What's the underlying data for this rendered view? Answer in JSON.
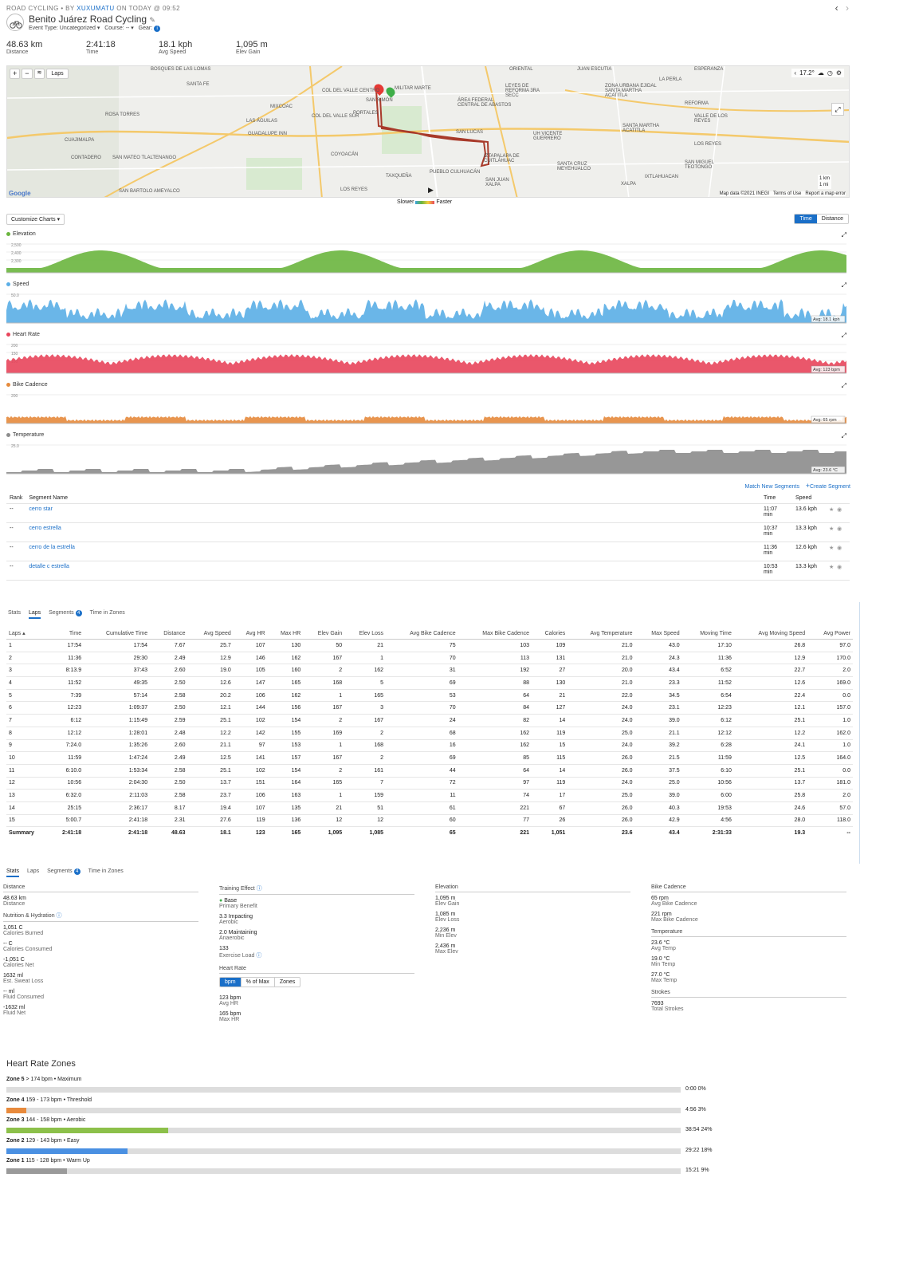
{
  "header": {
    "kicker": "ROAD CYCLING • BY",
    "author": "XUXUMATU",
    "when": "ON TODAY @ 09:52",
    "title": "Benito Juárez Road Cycling",
    "event_type": "Event Type: Uncategorized",
    "course": "Course: --",
    "gear": "Gear:",
    "nav_prev": "‹",
    "nav_next": "›"
  },
  "summary_stats": [
    {
      "value": "48.63 km",
      "label": "Distance"
    },
    {
      "value": "2:41:18",
      "label": "Time"
    },
    {
      "value": "18.1 kph",
      "label": "Avg Speed"
    },
    {
      "value": "1,095 m",
      "label": "Elev Gain"
    }
  ],
  "map": {
    "laps_label": "Laps",
    "temp": "17.2°",
    "attribution": "Map data ©2021 INEGI",
    "terms": "Terms of Use",
    "report": "Report a map error",
    "scale_km": "1 km",
    "scale_mi": "1 mi",
    "google": "Google",
    "places": [
      "BOSQUES DE LAS LOMAS",
      "SANTA FE",
      "ROSA TORRES",
      "CUAJIMALPA",
      "CONTADERO",
      "SAN MATEO TLALTENANGO",
      "SAN BARTOLO AMEYALCO",
      "MIXCOAC",
      "COL DEL VALLE CENTRO",
      "COL DEL VALLE SUR",
      "GUADALUPE INN",
      "LAS ÁGUILAS",
      "COYOACÁN",
      "LOS REYES",
      "SAN SIMÓN",
      "PORTALES",
      "MILITAR MARTE",
      "SAN LUCAS",
      "PUEBLO CULHUACÁN",
      "ÁREA FEDERAL CENTRAL DE ABASTOS",
      "LEYES DE REFORMA 3RA SECC",
      "UH VICENTE GUERRERO",
      "SANTA CRUZ MEYEHUALCO",
      "IZTAPALAPA DE CUITLÁHUAC",
      "SAN JUAN XALPA",
      "JUAN ESCUTIA",
      "ZONA URBANA EJIDAL SANTA MARTHA ACATITLA",
      "SANTA MARTHA ACATITLA",
      "REFORMA",
      "VALLE DE LOS REYES",
      "LOS REYES",
      "SAN MIGUEL TEOTONGO",
      "IXTLAHUACAN",
      "XALPA",
      "ESPERANZA",
      "LA PERLA",
      "ORIENTAL",
      "TAXQUEÑA"
    ],
    "legend_slower": "Slower",
    "legend_faster": "Faster"
  },
  "controls": {
    "customize": "Customize Charts ▾",
    "time": "Time",
    "distance": "Distance"
  },
  "charts": [
    {
      "key": "elev",
      "label": "Elevation",
      "color": "#6ab53e",
      "ticks": [
        "2,500",
        "2,400",
        "2,300"
      ],
      "avg": ""
    },
    {
      "key": "speed",
      "label": "Speed",
      "color": "#5aaee6",
      "ticks": [
        "50.0"
      ],
      "avg": "Avg: 18.1 kph"
    },
    {
      "key": "hr",
      "label": "Heart Rate",
      "color": "#e8455b",
      "ticks": [
        "200",
        "150",
        "100"
      ],
      "avg": "Avg: 123 bpm"
    },
    {
      "key": "cad",
      "label": "Bike Cadence",
      "color": "#e58a3c",
      "ticks": [
        "200"
      ],
      "avg": "Avg: 65 rpm"
    },
    {
      "key": "temp",
      "label": "Temperature",
      "color": "#8c8c8c",
      "ticks": [
        "25.0"
      ],
      "avg": "Avg: 23.6 °C"
    }
  ],
  "segments": {
    "match_new": "Match New Segments",
    "create": "Create Segment",
    "headers": {
      "rank": "Rank",
      "name": "Segment Name",
      "time": "Time",
      "speed": "Speed"
    },
    "rows": [
      {
        "rank": "--",
        "name": "cerro star",
        "time": "11:07",
        "unit": "min",
        "speed": "13.6 kph"
      },
      {
        "rank": "--",
        "name": "cerro estrella",
        "time": "10:37",
        "unit": "min",
        "speed": "13.3 kph"
      },
      {
        "rank": "--",
        "name": "cerro de la estrella",
        "time": "11:36",
        "unit": "min",
        "speed": "12.6 kph"
      },
      {
        "rank": "--",
        "name": "detalle c estrella",
        "time": "10:53",
        "unit": "min",
        "speed": "13.3 kph"
      }
    ]
  },
  "tabs": [
    "Stats",
    "Laps",
    "Segments",
    "Time in Zones"
  ],
  "tab_badge": "4",
  "laps": {
    "headers": [
      "Laps ▴",
      "Time",
      "Cumulative Time",
      "Distance",
      "Avg Speed",
      "Avg HR",
      "Max HR",
      "Elev Gain",
      "Elev Loss",
      "Avg Bike Cadence",
      "Max Bike Cadence",
      "Calories",
      "Avg Temperature",
      "Max Speed",
      "Moving Time",
      "Avg Moving Speed",
      "Avg Power"
    ],
    "rows": [
      [
        "1",
        "17:54",
        "17:54",
        "7.67",
        "25.7",
        "107",
        "130",
        "50",
        "21",
        "75",
        "103",
        "109",
        "21.0",
        "43.0",
        "17:10",
        "26.8",
        "97.0"
      ],
      [
        "2",
        "11:36",
        "29:30",
        "2.49",
        "12.9",
        "146",
        "162",
        "167",
        "1",
        "70",
        "113",
        "131",
        "21.0",
        "24.3",
        "11:36",
        "12.9",
        "170.0"
      ],
      [
        "3",
        "8:13.9",
        "37:43",
        "2.60",
        "19.0",
        "105",
        "160",
        "2",
        "162",
        "31",
        "192",
        "27",
        "20.0",
        "43.4",
        "6:52",
        "22.7",
        "2.0"
      ],
      [
        "4",
        "11:52",
        "49:35",
        "2.50",
        "12.6",
        "147",
        "165",
        "168",
        "5",
        "69",
        "88",
        "130",
        "21.0",
        "23.3",
        "11:52",
        "12.6",
        "169.0"
      ],
      [
        "5",
        "7:39",
        "57:14",
        "2.58",
        "20.2",
        "106",
        "162",
        "1",
        "165",
        "53",
        "64",
        "21",
        "22.0",
        "34.5",
        "6:54",
        "22.4",
        "0.0"
      ],
      [
        "6",
        "12:23",
        "1:09:37",
        "2.50",
        "12.1",
        "144",
        "156",
        "167",
        "3",
        "70",
        "84",
        "127",
        "24.0",
        "23.1",
        "12:23",
        "12.1",
        "157.0"
      ],
      [
        "7",
        "6:12",
        "1:15:49",
        "2.59",
        "25.1",
        "102",
        "154",
        "2",
        "167",
        "24",
        "82",
        "14",
        "24.0",
        "39.0",
        "6:12",
        "25.1",
        "1.0"
      ],
      [
        "8",
        "12:12",
        "1:28:01",
        "2.48",
        "12.2",
        "142",
        "155",
        "169",
        "2",
        "68",
        "162",
        "119",
        "25.0",
        "21.1",
        "12:12",
        "12.2",
        "162.0"
      ],
      [
        "9",
        "7:24.0",
        "1:35:26",
        "2.60",
        "21.1",
        "97",
        "153",
        "1",
        "168",
        "16",
        "162",
        "15",
        "24.0",
        "39.2",
        "6:28",
        "24.1",
        "1.0"
      ],
      [
        "10",
        "11:59",
        "1:47:24",
        "2.49",
        "12.5",
        "141",
        "157",
        "167",
        "2",
        "69",
        "85",
        "115",
        "26.0",
        "21.5",
        "11:59",
        "12.5",
        "164.0"
      ],
      [
        "11",
        "6:10.0",
        "1:53:34",
        "2.58",
        "25.1",
        "102",
        "154",
        "2",
        "161",
        "44",
        "64",
        "14",
        "26.0",
        "37.5",
        "6:10",
        "25.1",
        "0.0"
      ],
      [
        "12",
        "10:56",
        "2:04:30",
        "2.50",
        "13.7",
        "151",
        "164",
        "165",
        "7",
        "72",
        "97",
        "119",
        "24.0",
        "25.0",
        "10:56",
        "13.7",
        "181.0"
      ],
      [
        "13",
        "6:32.0",
        "2:11:03",
        "2.58",
        "23.7",
        "106",
        "163",
        "1",
        "159",
        "11",
        "74",
        "17",
        "25.0",
        "39.0",
        "6:00",
        "25.8",
        "2.0"
      ],
      [
        "14",
        "25:15",
        "2:36:17",
        "8.17",
        "19.4",
        "107",
        "135",
        "21",
        "51",
        "61",
        "221",
        "67",
        "26.0",
        "40.3",
        "19:53",
        "24.6",
        "57.0"
      ],
      [
        "15",
        "5:00.7",
        "2:41:18",
        "2.31",
        "27.6",
        "119",
        "136",
        "12",
        "12",
        "60",
        "77",
        "26",
        "26.0",
        "42.9",
        "4:56",
        "28.0",
        "118.0"
      ]
    ],
    "summary": [
      "Summary",
      "2:41:18",
      "2:41:18",
      "48.63",
      "18.1",
      "123",
      "165",
      "1,095",
      "1,085",
      "65",
      "221",
      "1,051",
      "23.6",
      "43.4",
      "2:31:33",
      "19.3",
      "--"
    ]
  },
  "stats": {
    "col1": {
      "distance_h": "Distance",
      "items1": [
        {
          "v": "48.63 km",
          "l": "Distance"
        }
      ],
      "nutrition_h": "Nutrition & Hydration",
      "items2": [
        {
          "v": "1,051 C",
          "l": "Calories Burned"
        },
        {
          "v": "-- C",
          "l": "Calories Consumed"
        },
        {
          "v": "-1,051 C",
          "l": "Calories Net"
        },
        {
          "v": "1632 ml",
          "l": "Est. Sweat Loss"
        },
        {
          "v": "-- ml",
          "l": "Fluid Consumed"
        },
        {
          "v": "-1632 ml",
          "l": "Fluid Net"
        }
      ]
    },
    "col2": {
      "training_h": "Training Effect",
      "items1": [
        {
          "v": "Base",
          "l": "Primary Benefit"
        },
        {
          "v": "3.3 Impacting",
          "l": "Aerobic"
        },
        {
          "v": "2.0 Maintaining",
          "l": "Anaerobic"
        },
        {
          "v": "133",
          "l": "Exercise Load"
        }
      ],
      "hr_h": "Heart Rate",
      "hr_toggle": [
        "bpm",
        "% of Max",
        "Zones"
      ],
      "items2": [
        {
          "v": "123 bpm",
          "l": "Avg HR"
        },
        {
          "v": "165 bpm",
          "l": "Max HR"
        }
      ]
    },
    "col3": {
      "elev_h": "Elevation",
      "items": [
        {
          "v": "1,095 m",
          "l": "Elev Gain"
        },
        {
          "v": "1,085 m",
          "l": "Elev Loss"
        },
        {
          "v": "2,236 m",
          "l": "Min Elev"
        },
        {
          "v": "2,436 m",
          "l": "Max Elev"
        }
      ]
    },
    "col4": {
      "cad_h": "Bike Cadence",
      "items1": [
        {
          "v": "65 rpm",
          "l": "Avg Bike Cadence"
        },
        {
          "v": "221 rpm",
          "l": "Max Bike Cadence"
        }
      ],
      "temp_h": "Temperature",
      "items2": [
        {
          "v": "23.6 °C",
          "l": "Avg Temp"
        },
        {
          "v": "19.0 °C",
          "l": "Min Temp"
        },
        {
          "v": "27.0 °C",
          "l": "Max Temp"
        }
      ],
      "strokes_h": "Strokes",
      "items3": [
        {
          "v": "7693",
          "l": "Total Strokes"
        }
      ]
    }
  },
  "zones": {
    "title": "Heart Rate Zones",
    "items": [
      {
        "zone": "Zone 5",
        "desc": "> 174 bpm • Maximum",
        "time": "0:00",
        "pct": "0%",
        "fraction": 0.0,
        "color": "#c8c8c8"
      },
      {
        "zone": "Zone 4",
        "desc": "159 - 173 bpm • Threshold",
        "time": "4:56",
        "pct": "3%",
        "fraction": 0.03,
        "color": "#e88a3c"
      },
      {
        "zone": "Zone 3",
        "desc": "144 - 158 bpm • Aerobic",
        "time": "38:54",
        "pct": "24%",
        "fraction": 0.24,
        "color": "#8cc04a"
      },
      {
        "zone": "Zone 2",
        "desc": "129 - 143 bpm • Easy",
        "time": "29:22",
        "pct": "18%",
        "fraction": 0.18,
        "color": "#4a90e2"
      },
      {
        "zone": "Zone 1",
        "desc": "115 - 128 bpm • Warm Up",
        "time": "15:21",
        "pct": "9%",
        "fraction": 0.09,
        "color": "#9a9a9a"
      }
    ]
  }
}
